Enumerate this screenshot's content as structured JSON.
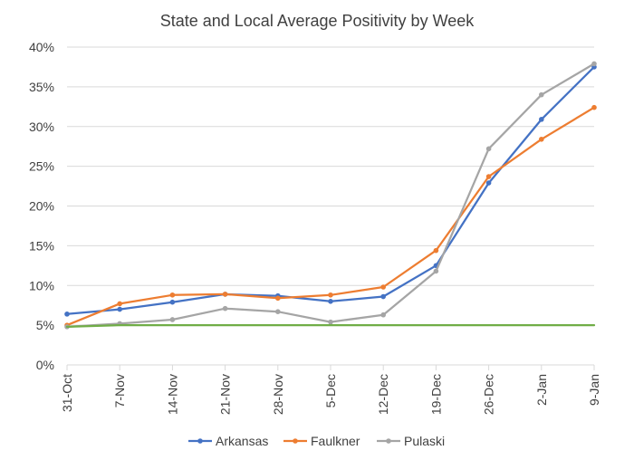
{
  "chart_data": {
    "type": "line",
    "title": "State and Local Average Positivity by Week",
    "xlabel": "",
    "ylabel": "",
    "categories": [
      "31-Oct",
      "7-Nov",
      "14-Nov",
      "21-Nov",
      "28-Nov",
      "5-Dec",
      "12-Dec",
      "19-Dec",
      "26-Dec",
      "2-Jan",
      "9-Jan"
    ],
    "y_ticks": [
      "0%",
      "5%",
      "10%",
      "15%",
      "20%",
      "25%",
      "30%",
      "35%",
      "40%"
    ],
    "ylim": [
      0,
      40
    ],
    "grid": true,
    "legend_position": "bottom",
    "series": [
      {
        "name": "Arkansas",
        "color": "#4472C4",
        "values": [
          6.4,
          7.0,
          7.9,
          8.9,
          8.7,
          8.0,
          8.6,
          12.5,
          22.9,
          30.9,
          37.5
        ]
      },
      {
        "name": "Faulkner",
        "color": "#ED7D31",
        "values": [
          5.0,
          7.7,
          8.8,
          8.9,
          8.4,
          8.8,
          9.8,
          14.4,
          23.7,
          28.4,
          32.4
        ]
      },
      {
        "name": "Pulaski",
        "color": "#A5A5A5",
        "values": [
          4.8,
          5.2,
          5.7,
          7.1,
          6.7,
          5.4,
          6.3,
          11.8,
          27.2,
          34.0,
          37.9
        ]
      },
      {
        "color": "#70AD47",
        "values": [
          4.8,
          5.0,
          5.0,
          5.0,
          5.0,
          5.0,
          5.0,
          5.0,
          5.0,
          5.0,
          5.0
        ]
      }
    ]
  }
}
